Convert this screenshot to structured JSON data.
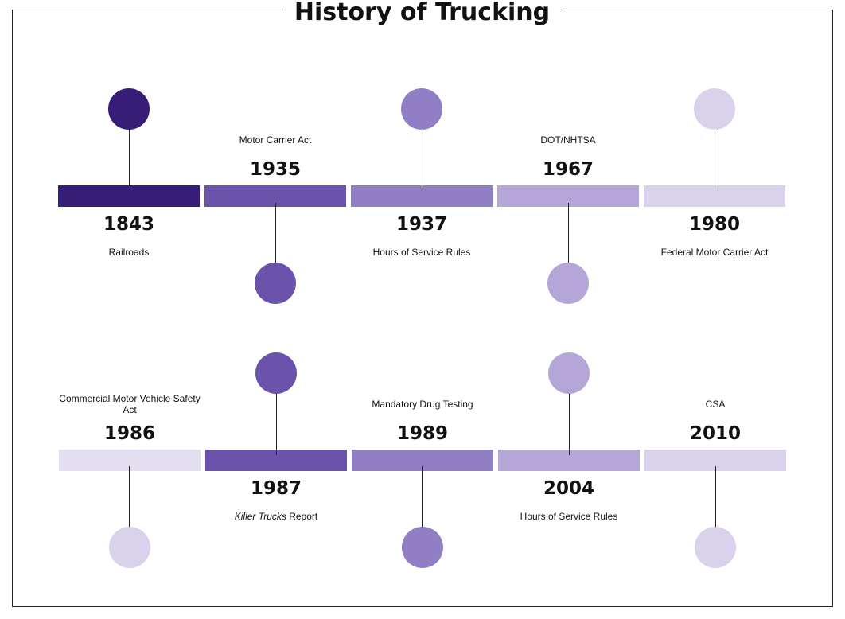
{
  "title": "History of Trucking",
  "colors": {
    "c1": "#371c78",
    "c2": "#6b52aa",
    "c3": "#917fc6",
    "c4": "#b4a7d8",
    "c5": "#d9d2ea",
    "c6": "#e3dff1"
  },
  "rows": [
    {
      "events": [
        {
          "year": "1843",
          "label": "Railroads",
          "color": "c1"
        },
        {
          "year": "1935",
          "label": "Motor Carrier Act",
          "color": "c2"
        },
        {
          "year": "1937",
          "label": "Hours of Service Rules",
          "color": "c3"
        },
        {
          "year": "1967",
          "label": "DOT/NHTSA",
          "color": "c4"
        },
        {
          "year": "1980",
          "label": "Federal Motor Carrier Act",
          "color": "c5"
        }
      ]
    },
    {
      "events": [
        {
          "year": "1986",
          "label": "Commercial Motor Vehicle Safety Act",
          "color": "c6"
        },
        {
          "year": "1987",
          "label_italic": "Killer Trucks",
          "label_rest": " Report",
          "color": "c2"
        },
        {
          "year": "1989",
          "label": "Mandatory Drug Testing",
          "color": "c3"
        },
        {
          "year": "2004",
          "label": "Hours of Service Rules",
          "color": "c4"
        },
        {
          "year": "2010",
          "label": "CSA",
          "color": "c5"
        }
      ]
    }
  ]
}
